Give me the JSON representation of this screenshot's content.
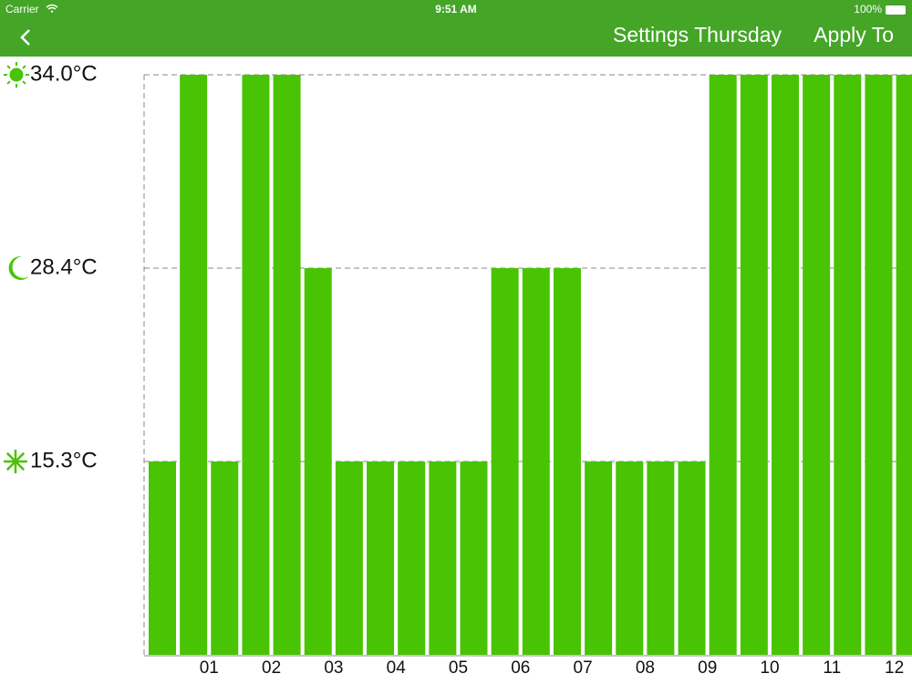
{
  "status_bar": {
    "carrier": "Carrier",
    "time": "9:51 AM",
    "battery": "100%"
  },
  "nav_bar": {
    "title": "Settings Thursday",
    "action": "Apply To"
  },
  "chart_data": {
    "type": "bar",
    "values": [
      15.3,
      34.0,
      15.3,
      34.0,
      34.0,
      28.4,
      15.3,
      15.3,
      15.3,
      15.3,
      15.3,
      28.4,
      28.4,
      28.4,
      15.3,
      15.3,
      15.3,
      15.3,
      34.0,
      34.0,
      34.0,
      34.0,
      34.0,
      34.0,
      34.0
    ],
    "color": "#48c404",
    "yticks": [
      {
        "value": 15.3,
        "label": "15.3°C"
      },
      {
        "value": 28.4,
        "label": "28.4°C"
      },
      {
        "value": 34.0,
        "label": "34.0°C"
      }
    ],
    "x_labels": [
      "01",
      "02",
      "03",
      "04",
      "05",
      "06",
      "07",
      "08",
      "09",
      "10",
      "11",
      "12"
    ],
    "grid": true
  }
}
